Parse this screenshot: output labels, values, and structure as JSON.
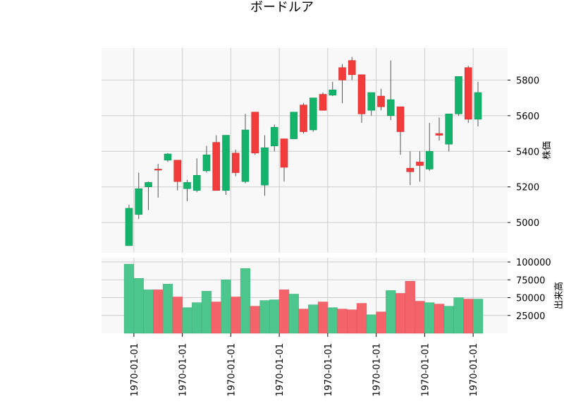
{
  "chart_data": {
    "type": "candlestick",
    "title": "ボードルア",
    "x_tick_labels": [
      "1970-01-01",
      "1970-01-01",
      "1970-01-01",
      "1970-01-01",
      "1970-01-01",
      "1970-01-01",
      "1970-01-01",
      "1970-01-01"
    ],
    "x_tick_bar_index": [
      0.5,
      5.5,
      10.5,
      15.5,
      20.5,
      25.5,
      30.5,
      35.5
    ],
    "price_panel": {
      "ylabel": "株価",
      "ylim": [
        4830,
        5980
      ],
      "yticks": [
        5000,
        5200,
        5400,
        5600,
        5800
      ],
      "grid": true
    },
    "volume_panel": {
      "ylabel": "出来高",
      "ylim": [
        0,
        106000
      ],
      "yticks": [
        25000,
        50000,
        75000,
        100000
      ],
      "tick_labels": [
        "25000",
        "50000",
        "75000",
        "100000"
      ],
      "grid": true
    },
    "colors": {
      "up": "#13b36b",
      "down": "#f23b3b",
      "up_volume": "#4cc68d",
      "down_volume": "#f36369",
      "wick": "#555555",
      "panel_bg": "#f8f8f8",
      "grid": "#cccccc"
    },
    "candles": [
      {
        "open": 4870,
        "high": 5100,
        "low": 4870,
        "close": 5080
      },
      {
        "open": 5045,
        "high": 5280,
        "low": 5020,
        "close": 5190
      },
      {
        "open": 5200,
        "high": 5230,
        "low": 5070,
        "close": 5225
      },
      {
        "open": 5300,
        "high": 5330,
        "low": 5140,
        "close": 5295
      },
      {
        "open": 5350,
        "high": 5390,
        "low": 5340,
        "close": 5385
      },
      {
        "open": 5350,
        "high": 5350,
        "low": 5180,
        "close": 5230
      },
      {
        "open": 5190,
        "high": 5240,
        "low": 5120,
        "close": 5225
      },
      {
        "open": 5180,
        "high": 5360,
        "low": 5170,
        "close": 5265
      },
      {
        "open": 5290,
        "high": 5430,
        "low": 5280,
        "close": 5380
      },
      {
        "open": 5450,
        "high": 5490,
        "low": 5180,
        "close": 5180
      },
      {
        "open": 5180,
        "high": 5490,
        "low": 5155,
        "close": 5490
      },
      {
        "open": 5390,
        "high": 5410,
        "low": 5260,
        "close": 5280
      },
      {
        "open": 5230,
        "high": 5610,
        "low": 5220,
        "close": 5520
      },
      {
        "open": 5620,
        "high": 5620,
        "low": 5380,
        "close": 5390
      },
      {
        "open": 5210,
        "high": 5490,
        "low": 5150,
        "close": 5420
      },
      {
        "open": 5430,
        "high": 5550,
        "low": 5400,
        "close": 5535
      },
      {
        "open": 5470,
        "high": 5470,
        "low": 5230,
        "close": 5310
      },
      {
        "open": 5470,
        "high": 5620,
        "low": 5470,
        "close": 5620
      },
      {
        "open": 5660,
        "high": 5670,
        "low": 5500,
        "close": 5510
      },
      {
        "open": 5520,
        "high": 5700,
        "low": 5510,
        "close": 5700
      },
      {
        "open": 5720,
        "high": 5730,
        "low": 5630,
        "close": 5630
      },
      {
        "open": 5715,
        "high": 5790,
        "low": 5710,
        "close": 5745
      },
      {
        "open": 5870,
        "high": 5890,
        "low": 5670,
        "close": 5800
      },
      {
        "open": 5910,
        "high": 5930,
        "low": 5800,
        "close": 5830
      },
      {
        "open": 5830,
        "high": 5830,
        "low": 5560,
        "close": 5610
      },
      {
        "open": 5630,
        "high": 5730,
        "low": 5600,
        "close": 5730
      },
      {
        "open": 5710,
        "high": 5750,
        "low": 5630,
        "close": 5650
      },
      {
        "open": 5600,
        "high": 5910,
        "low": 5575,
        "close": 5690
      },
      {
        "open": 5650,
        "high": 5650,
        "low": 5380,
        "close": 5510
      },
      {
        "open": 5305,
        "high": 5400,
        "low": 5210,
        "close": 5285
      },
      {
        "open": 5340,
        "high": 5400,
        "low": 5230,
        "close": 5320
      },
      {
        "open": 5300,
        "high": 5560,
        "low": 5290,
        "close": 5400
      },
      {
        "open": 5500,
        "high": 5590,
        "low": 5460,
        "close": 5490
      },
      {
        "open": 5440,
        "high": 5610,
        "low": 5400,
        "close": 5610
      },
      {
        "open": 5610,
        "high": 5820,
        "low": 5600,
        "close": 5820
      },
      {
        "open": 5870,
        "high": 5880,
        "low": 5560,
        "close": 5580
      },
      {
        "open": 5580,
        "high": 5790,
        "low": 5540,
        "close": 5730
      }
    ],
    "volume": [
      97000,
      77000,
      61000,
      61000,
      69000,
      51000,
      36000,
      43000,
      59000,
      44000,
      75000,
      51000,
      91000,
      38000,
      46000,
      47000,
      61000,
      55000,
      34000,
      40000,
      44000,
      36000,
      34000,
      33000,
      42000,
      26000,
      30000,
      60000,
      56000,
      73000,
      45000,
      43000,
      41000,
      38000,
      50000,
      48000,
      48000
    ]
  }
}
